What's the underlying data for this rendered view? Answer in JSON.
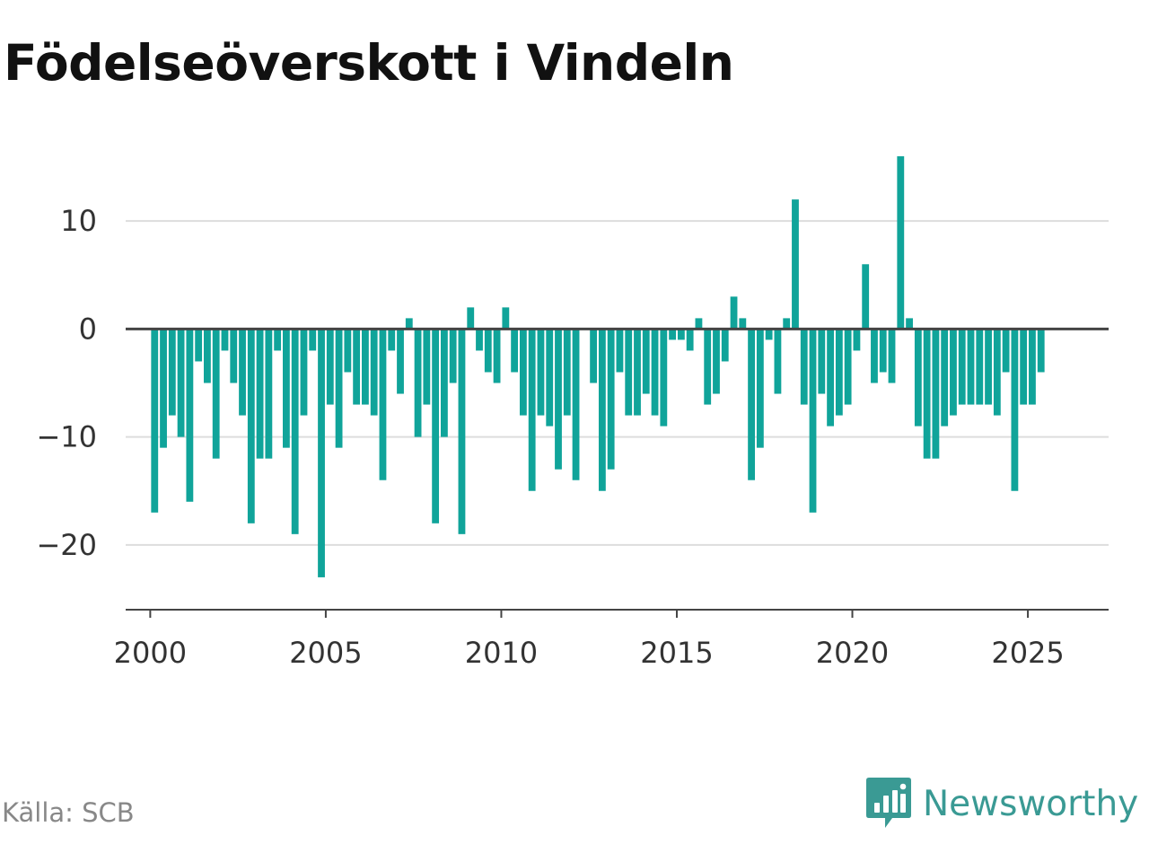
{
  "chart_data": {
    "type": "bar",
    "title": "Födelseöverskott i Vindeln",
    "xlabel": "",
    "ylabel": "",
    "x_ticks": [
      "2000",
      "2005",
      "2010",
      "2015",
      "2020",
      "2025"
    ],
    "y_ticks": [
      "10",
      "0",
      "−10",
      "−20"
    ],
    "y_tick_values": [
      10,
      0,
      -10,
      -20
    ],
    "ylim": [
      -26,
      18
    ],
    "xlim": [
      1999.3,
      2027.3
    ],
    "grid": true,
    "bar_color": "#10a49a",
    "series": [
      {
        "start": 2000.0,
        "step": 0.25,
        "values": [
          -17,
          -11,
          -8,
          -10,
          -16,
          -3,
          -5,
          -12,
          -2,
          -5,
          -8,
          -18,
          -12,
          -12,
          -2,
          -11,
          -19,
          -8,
          -2,
          -23,
          -7,
          -11,
          -4,
          -7,
          -7,
          -8,
          -14,
          -2,
          -6,
          1,
          -10,
          -7,
          -18,
          -10,
          -5,
          -19,
          2,
          -2,
          -4,
          -5,
          2,
          -4,
          -8,
          -15,
          -8,
          -9,
          -13,
          -8,
          -14,
          0,
          -5,
          -15,
          -13,
          -4,
          -8,
          -8,
          -6,
          -8,
          -9,
          -1,
          -1,
          -2,
          1,
          -7,
          -6,
          -3,
          3,
          1,
          -14,
          -11,
          -1,
          -6,
          1,
          12,
          -7,
          -17,
          -6,
          -9,
          -8,
          -7,
          -2,
          6,
          -5,
          -4,
          -5,
          16,
          1,
          -9,
          -12,
          -12,
          -9,
          -8,
          -7,
          -7,
          -7,
          -7,
          -8,
          -4,
          -15,
          -7,
          -7,
          -4
        ]
      }
    ]
  },
  "source": "Källa: SCB",
  "brand": {
    "name": "Newsworthy",
    "color": "#3a9a94",
    "icon": "newsworthy-logo-icon"
  }
}
